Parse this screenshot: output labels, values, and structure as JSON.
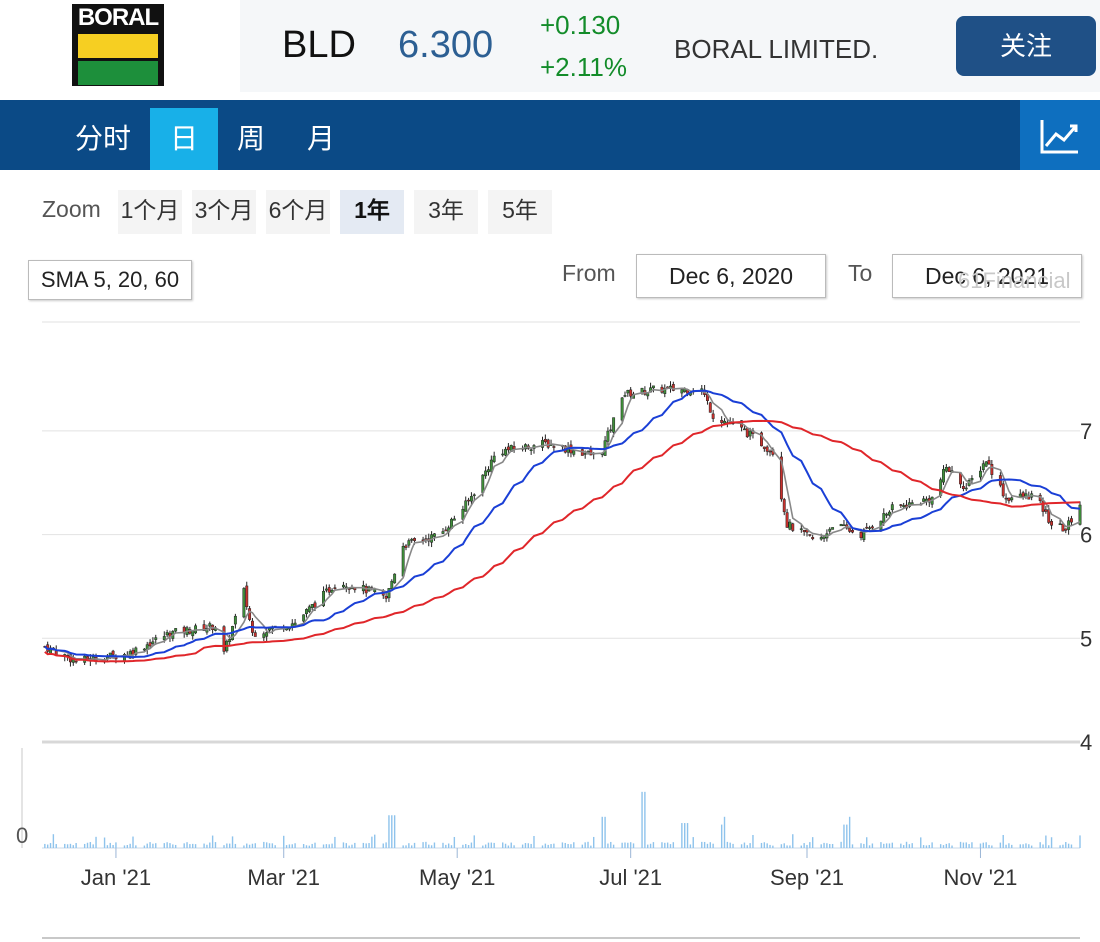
{
  "header": {
    "logo_text": "BORAL",
    "symbol": "BLD",
    "price": "6.300",
    "change": "+0.130",
    "change_pct": "+2.11%",
    "company": "BORAL LIMITED.",
    "follow_label": "关注"
  },
  "nav": {
    "tabs": [
      "分时",
      "日",
      "周",
      "月"
    ],
    "active_tab": "日",
    "chart_icon": "line-chart-icon"
  },
  "zoom": {
    "label": "Zoom",
    "options": [
      "1个月",
      "3个月",
      "6个月",
      "1年",
      "3年",
      "5年"
    ],
    "active": "1年"
  },
  "indicator": "SMA 5, 20, 60",
  "range": {
    "from_label": "From",
    "from": "Dec 6, 2020",
    "to_label": "To",
    "to": "Dec 6, 2021"
  },
  "watermark": "61Financial",
  "colors": {
    "up_candle": "#3f8f3a",
    "down_candle": "#c9302c",
    "sma5": "#888888",
    "sma20": "#1a3fd6",
    "sma60": "#e0262a",
    "volume": "#8ec3ec"
  },
  "chart_data": {
    "type": "candlestick",
    "y_ticks": [
      4,
      5,
      6,
      7
    ],
    "ylim": [
      4,
      8.05
    ],
    "volume_tick": "0",
    "x_ticks": [
      {
        "label": "Jan '21",
        "date": "2021-01-01"
      },
      {
        "label": "Mar '21",
        "date": "2021-03-01"
      },
      {
        "label": "May '21",
        "date": "2021-05-01"
      },
      {
        "label": "Jul '21",
        "date": "2021-07-01"
      },
      {
        "label": "Sep '21",
        "date": "2021-09-01"
      },
      {
        "label": "Nov '21",
        "date": "2021-11-01"
      }
    ],
    "xlim": [
      "2020-12-06",
      "2021-12-06"
    ],
    "price_anchors": [
      [
        "2020-12-07",
        4.92
      ],
      [
        "2020-12-18",
        4.78
      ],
      [
        "2021-01-05",
        4.85
      ],
      [
        "2021-01-20",
        5.05
      ],
      [
        "2021-02-05",
        5.12
      ],
      [
        "2021-02-08",
        4.85
      ],
      [
        "2021-02-15",
        5.45
      ],
      [
        "2021-02-18",
        5.05
      ],
      [
        "2021-03-05",
        5.15
      ],
      [
        "2021-03-20",
        5.55
      ],
      [
        "2021-04-01",
        5.45
      ],
      [
        "2021-04-06",
        5.38
      ],
      [
        "2021-04-12",
        5.9
      ],
      [
        "2021-04-25",
        6.0
      ],
      [
        "2021-05-05",
        6.32
      ],
      [
        "2021-05-15",
        6.8
      ],
      [
        "2021-06-01",
        6.88
      ],
      [
        "2021-06-20",
        6.75
      ],
      [
        "2021-06-25",
        7.1
      ],
      [
        "2021-06-28",
        7.35
      ],
      [
        "2021-07-10",
        7.4
      ],
      [
        "2021-07-26",
        7.4
      ],
      [
        "2021-07-30",
        7.15
      ],
      [
        "2021-08-10",
        7.0
      ],
      [
        "2021-08-20",
        6.8
      ],
      [
        "2021-08-25",
        6.1
      ],
      [
        "2021-09-05",
        5.92
      ],
      [
        "2021-09-10",
        6.1
      ],
      [
        "2021-09-20",
        6.0
      ],
      [
        "2021-10-01",
        6.25
      ],
      [
        "2021-10-15",
        6.35
      ],
      [
        "2021-10-20",
        6.65
      ],
      [
        "2021-10-27",
        6.45
      ],
      [
        "2021-11-03",
        6.72
      ],
      [
        "2021-11-10",
        6.35
      ],
      [
        "2021-11-20",
        6.38
      ],
      [
        "2021-11-26",
        6.1
      ],
      [
        "2021-12-01",
        6.05
      ],
      [
        "2021-12-06",
        6.3
      ]
    ],
    "volume_spikes": [
      [
        "2021-04-08",
        0.42
      ],
      [
        "2021-06-21",
        0.4
      ],
      [
        "2021-07-05",
        0.72
      ],
      [
        "2021-07-20",
        0.32
      ],
      [
        "2021-08-02",
        0.3
      ],
      [
        "2021-09-15",
        0.3
      ]
    ],
    "series": [
      {
        "name": "SMA 5",
        "period": 5
      },
      {
        "name": "SMA 20",
        "period": 20
      },
      {
        "name": "SMA 60",
        "period": 60
      }
    ]
  }
}
